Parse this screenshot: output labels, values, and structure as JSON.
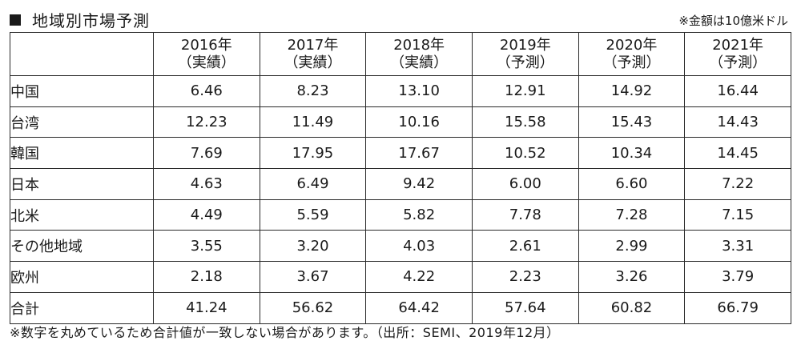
{
  "header": {
    "icon": "square-bullet-icon",
    "title": "地域別市場予測",
    "unit": "※金額は10億米ドル"
  },
  "table": {
    "columns": [
      {
        "year": "2016年",
        "type": "（実績）"
      },
      {
        "year": "2017年",
        "type": "（実績）"
      },
      {
        "year": "2018年",
        "type": "（実績）"
      },
      {
        "year": "2019年",
        "type": "（予測）"
      },
      {
        "year": "2020年",
        "type": "（予測）"
      },
      {
        "year": "2021年",
        "type": "（予測）"
      }
    ],
    "rows": [
      {
        "region": "中国",
        "values": [
          "6.46",
          "8.23",
          "13.10",
          "12.91",
          "14.92",
          "16.44"
        ]
      },
      {
        "region": "台湾",
        "values": [
          "12.23",
          "11.49",
          "10.16",
          "15.58",
          "15.43",
          "14.43"
        ]
      },
      {
        "region": "韓国",
        "values": [
          "7.69",
          "17.95",
          "17.67",
          "10.52",
          "10.34",
          "14.45"
        ]
      },
      {
        "region": "日本",
        "values": [
          "4.63",
          "6.49",
          "9.42",
          "6.00",
          "6.60",
          "7.22"
        ]
      },
      {
        "region": "北米",
        "values": [
          "4.49",
          "5.59",
          "5.82",
          "7.78",
          "7.28",
          "7.15"
        ]
      },
      {
        "region": "その他地域",
        "values": [
          "3.55",
          "3.20",
          "4.03",
          "2.61",
          "2.99",
          "3.31"
        ]
      },
      {
        "region": "欧州",
        "values": [
          "2.18",
          "3.67",
          "4.22",
          "2.23",
          "3.26",
          "3.79"
        ]
      },
      {
        "region": "合計",
        "values": [
          "41.24",
          "56.62",
          "64.42",
          "57.64",
          "60.82",
          "66.79"
        ]
      }
    ]
  },
  "footnote": "※数字を丸めているため合計値が一致しない場合があります。（出所：SEMI、2019年12月）"
}
